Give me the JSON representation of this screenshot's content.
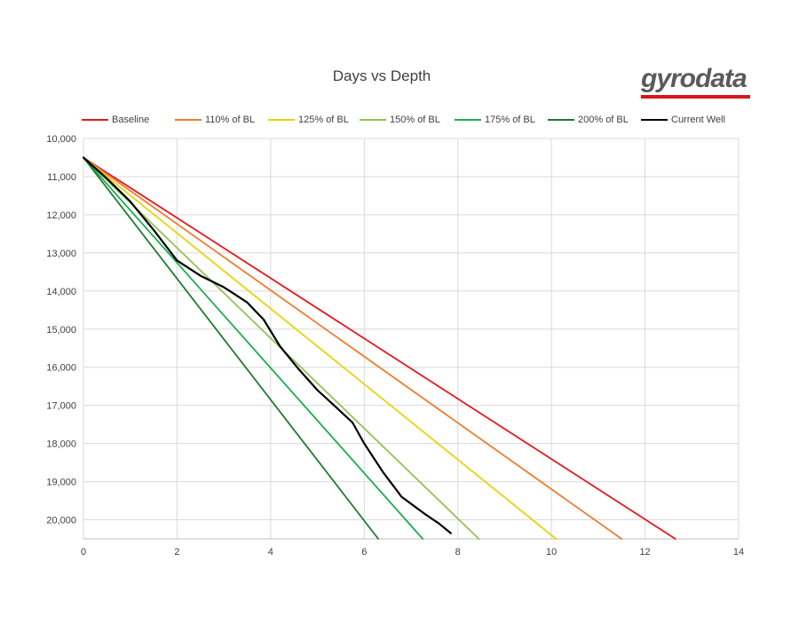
{
  "chart_data": {
    "type": "line",
    "title": "Days vs Depth",
    "xlabel": "",
    "ylabel": "",
    "xlim": [
      0,
      14
    ],
    "ylim": [
      10000,
      20500
    ],
    "y_inverted": true,
    "x_ticks": [
      0,
      2,
      4,
      6,
      8,
      10,
      12,
      14
    ],
    "y_ticks": [
      10000,
      11000,
      12000,
      13000,
      14000,
      15000,
      16000,
      17000,
      18000,
      19000,
      20000
    ],
    "y_tick_labels": [
      "10,000",
      "11,000",
      "12,000",
      "13,000",
      "14,000",
      "15,000",
      "16,000",
      "17,000",
      "18,000",
      "19,000",
      "20,000"
    ],
    "grid": "vertical and horizontal",
    "legend": "top",
    "series": [
      {
        "name": "Baseline",
        "color": "#e31a1c",
        "x": [
          0,
          12.65
        ],
        "y": [
          10500,
          20500
        ]
      },
      {
        "name": "110% of BL",
        "color": "#ed7d31",
        "x": [
          0,
          11.5
        ],
        "y": [
          10500,
          20500
        ]
      },
      {
        "name": "125% of BL",
        "color": "#e6d40a",
        "x": [
          0,
          10.1
        ],
        "y": [
          10500,
          20500
        ]
      },
      {
        "name": "150% of BL",
        "color": "#92c353",
        "x": [
          0,
          8.45
        ],
        "y": [
          10500,
          20500
        ]
      },
      {
        "name": "175% of BL",
        "color": "#1aae52",
        "x": [
          0,
          7.25
        ],
        "y": [
          10500,
          20500
        ]
      },
      {
        "name": "200% of BL",
        "color": "#1f7a2f",
        "x": [
          0,
          6.3
        ],
        "y": [
          10500,
          20500
        ]
      },
      {
        "name": "Current Well",
        "color": "#000000",
        "x": [
          0,
          0.5,
          1.0,
          1.5,
          2.0,
          2.5,
          3.0,
          3.5,
          3.85,
          4.2,
          4.6,
          5.0,
          5.4,
          5.75,
          6.0,
          6.4,
          6.8,
          7.3,
          7.6,
          7.85
        ],
        "y": [
          10500,
          11050,
          11650,
          12400,
          13200,
          13600,
          13900,
          14300,
          14750,
          15450,
          16050,
          16600,
          17050,
          17450,
          18000,
          18750,
          19400,
          19850,
          20100,
          20350
        ]
      }
    ]
  },
  "logo": {
    "text": "gyrodata"
  }
}
